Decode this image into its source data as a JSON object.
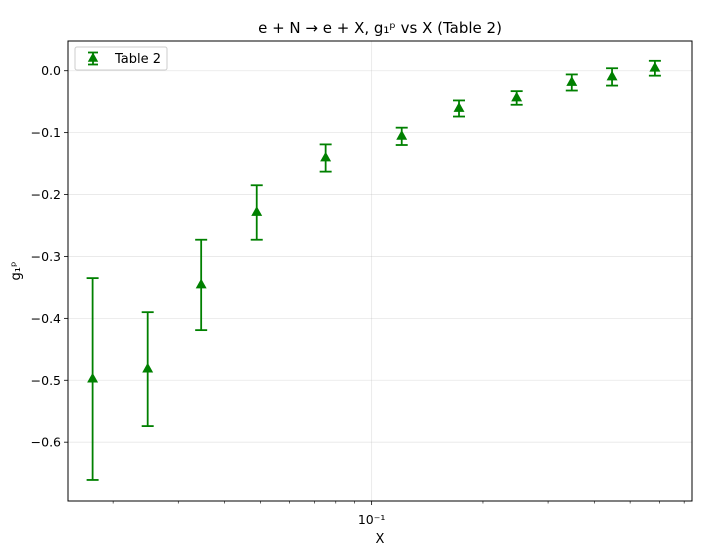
{
  "chart_data": {
    "type": "scatter",
    "title": "e + N → e + X, g₁ᵖ vs X (Table 2)",
    "xlabel": "X",
    "ylabel": "g₁ᵖ",
    "xscale": "log",
    "xlim": [
      0.0151,
      0.735
    ],
    "ylim": [
      -0.695,
      0.048
    ],
    "x_tick_labels": [
      {
        "value": 0.1,
        "label": "10⁻¹"
      }
    ],
    "x_minor_ticks": [
      0.02,
      0.03,
      0.04,
      0.05,
      0.06,
      0.07,
      0.08,
      0.09,
      0.2,
      0.3,
      0.4,
      0.5,
      0.6,
      0.7
    ],
    "y_ticks": [
      {
        "value": 0.0,
        "label": "0.0"
      },
      {
        "value": -0.1,
        "label": "−0.1"
      },
      {
        "value": -0.2,
        "label": "−0.2"
      },
      {
        "value": -0.3,
        "label": "−0.3"
      },
      {
        "value": -0.4,
        "label": "−0.4"
      },
      {
        "value": -0.5,
        "label": "−0.5"
      },
      {
        "value": -0.6,
        "label": "−0.6"
      }
    ],
    "grid": true,
    "legend": {
      "placement": "top-left",
      "entries": [
        "Table 2"
      ]
    },
    "color": "#008000",
    "series": [
      {
        "name": "Table 2",
        "marker": "triangle",
        "x": [
          0.0176,
          0.0248,
          0.0346,
          0.0489,
          0.0751,
          0.1206,
          0.1723,
          0.2467,
          0.3477,
          0.4468,
          0.5834
        ],
        "y": [
          -0.498,
          -0.482,
          -0.346,
          -0.229,
          -0.141,
          -0.106,
          -0.061,
          -0.044,
          -0.019,
          -0.01,
          0.004
        ],
        "yerr": [
          0.163,
          0.092,
          0.073,
          0.044,
          0.022,
          0.014,
          0.013,
          0.011,
          0.013,
          0.014,
          0.012
        ]
      }
    ]
  }
}
